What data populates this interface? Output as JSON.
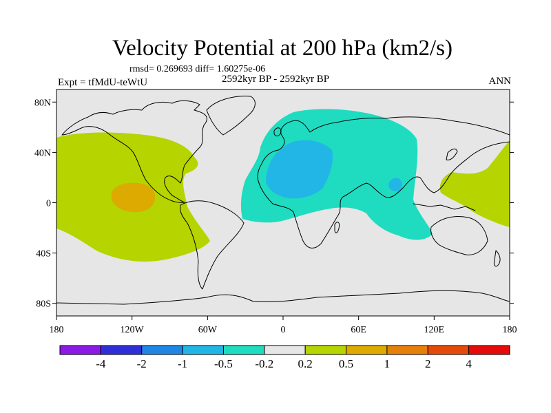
{
  "title": "Velocity Potential at 200 hPa (km2/s)",
  "stats": "rmsd= 0.269693 diff= 1.60275e-06",
  "period": "2592kyr BP - 2592kyr BP",
  "experiment": "Expt = tfMdU-teWtU",
  "season": "ANN",
  "map": {
    "lat_ticks": [
      "80N",
      "40N",
      "0",
      "40S",
      "80S"
    ],
    "lon_ticks": [
      "180",
      "120W",
      "60W",
      "0",
      "60E",
      "120E",
      "180"
    ],
    "ocean_color": "#e6e6e6",
    "coast_color": "#000000"
  },
  "fields": [
    {
      "name": "pacific-positive-anomaly",
      "range": "0.2 to 0.5",
      "color": "#b5d400"
    },
    {
      "name": "pacific-core-anomaly",
      "range": "0.5 to 1",
      "color": "#dcaa00"
    },
    {
      "name": "west-pacific-positive-anomaly",
      "range": "0.2 to 0.5",
      "color": "#b5d400"
    },
    {
      "name": "afro-eurasian-negative-anomaly",
      "range": "-0.5 to -0.2",
      "color": "#1fdcc0"
    },
    {
      "name": "africa-mediterranean-core",
      "range": "-1 to -0.5",
      "color": "#22b6e6"
    },
    {
      "name": "india-core",
      "range": "-1 to -0.5",
      "color": "#22b6e6"
    }
  ],
  "colorbar": {
    "labels": [
      "-4",
      "-2",
      "-1",
      "-0.5",
      "-0.2",
      "0.2",
      "0.5",
      "1",
      "2",
      "4"
    ],
    "colors": [
      "#8c1ae6",
      "#2f2fd8",
      "#1f86e6",
      "#22b6e6",
      "#1fdcc0",
      "#e6e6e6",
      "#b5d400",
      "#dcaa00",
      "#e6800a",
      "#e64a0a",
      "#e60a0a"
    ]
  }
}
